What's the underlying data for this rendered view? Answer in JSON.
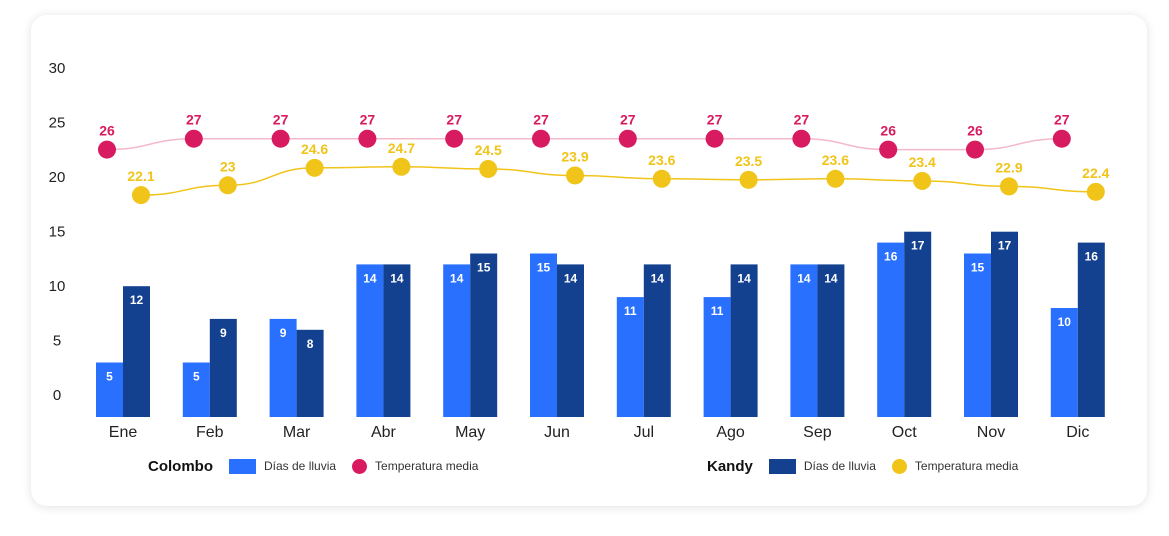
{
  "chart_data": {
    "type": "bar",
    "categories": [
      "Ene",
      "Feb",
      "Mar",
      "Abr",
      "May",
      "Jun",
      "Jul",
      "Ago",
      "Sep",
      "Oct",
      "Nov",
      "Dic"
    ],
    "ylim": [
      0,
      30
    ],
    "yticks": [
      0,
      5,
      10,
      15,
      20,
      25,
      30
    ],
    "bars": [
      {
        "name": "Días de lluvia",
        "group": "Colombo",
        "color": "#2970ff",
        "values": [
          5,
          5,
          9,
          14,
          14,
          15,
          11,
          11,
          14,
          16,
          15,
          10
        ]
      },
      {
        "name": "Días de lluvia",
        "group": "Kandy",
        "color": "#13418f",
        "values": [
          12,
          9,
          8,
          14,
          15,
          14,
          14,
          14,
          14,
          17,
          17,
          16
        ]
      }
    ],
    "lines": [
      {
        "name": "Temperatura media",
        "group": "Colombo",
        "color": "#d81b60",
        "line_color": "#f3b8c9",
        "values": [
          26,
          27,
          27,
          27,
          27,
          27,
          27,
          27,
          27,
          26,
          26,
          27
        ]
      },
      {
        "name": "Temperatura media",
        "group": "Kandy",
        "color": "#f0c419",
        "line_color": "#f0c419",
        "values": [
          22.1,
          23,
          24.6,
          24.7,
          24.5,
          23.9,
          23.6,
          23.5,
          23.6,
          23.4,
          22.9,
          22.4
        ]
      }
    ],
    "legend": [
      {
        "title": "Colombo",
        "bar_label": "Días de lluvia",
        "line_label": "Temperatura media",
        "bar_color": "#2970ff",
        "dot_color": "#d81b60"
      },
      {
        "title": "Kandy",
        "bar_label": "Días de lluvia",
        "line_label": "Temperatura media",
        "bar_color": "#13418f",
        "dot_color": "#f0c419"
      }
    ]
  }
}
